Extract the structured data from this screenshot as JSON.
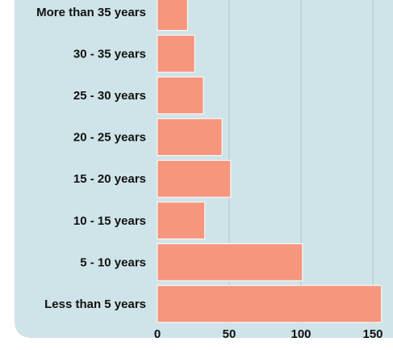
{
  "chart_data": {
    "type": "bar",
    "orientation": "horizontal",
    "categories": [
      "More than 35 years",
      "30 - 35 years",
      "25 - 30 years",
      "20 - 25 years",
      "15 - 20 years",
      "10 - 15 years",
      "5 - 10 years",
      "Less than 5 years"
    ],
    "values": [
      21,
      26,
      32,
      45,
      51,
      33,
      101,
      156
    ],
    "title": "",
    "xlabel": "",
    "ylabel": "",
    "xlim": [
      0,
      163
    ],
    "xticks": [
      0,
      50,
      100,
      150
    ],
    "grid": "vertical",
    "legend": "none",
    "colors": {
      "background": "#cfe4e8",
      "bar": "#f6967d",
      "bar_edge": "#ffffff",
      "grid": "#a9c7cc",
      "text": "#111111"
    }
  }
}
